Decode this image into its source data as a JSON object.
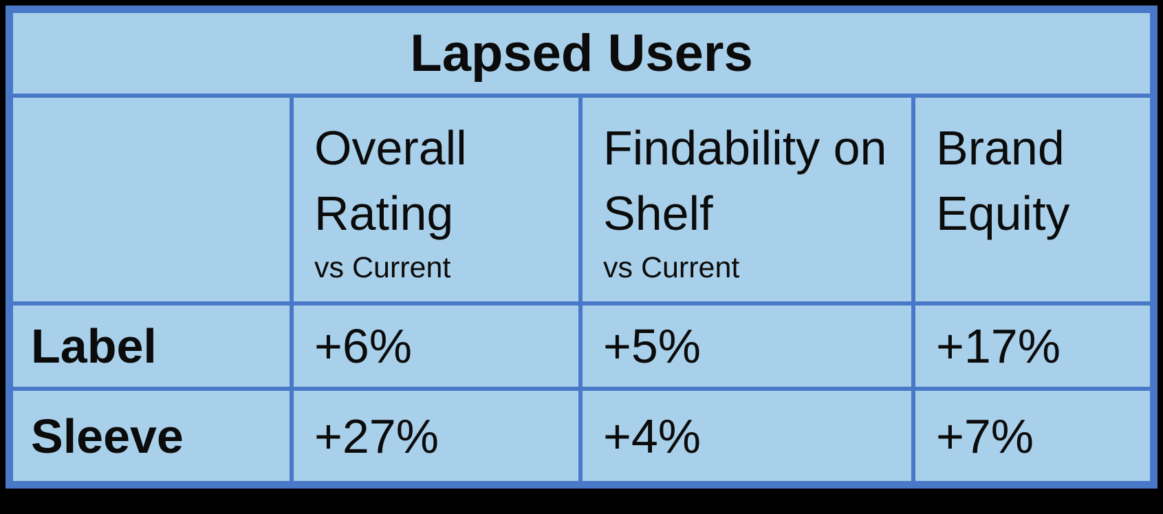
{
  "chart_data": {
    "type": "table",
    "title": "Lapsed Users",
    "columns": [
      {
        "label": "Overall Rating",
        "sublabel": "vs Current"
      },
      {
        "label": "Findability on Shelf",
        "sublabel": "vs Current"
      },
      {
        "label": "Brand Equity",
        "sublabel": ""
      }
    ],
    "rows": [
      {
        "label": "Label",
        "values": [
          "+6%",
          "+5%",
          "+17%"
        ]
      },
      {
        "label": "Sleeve",
        "values": [
          "+27%",
          "+4%",
          "+7%"
        ]
      }
    ]
  },
  "colors": {
    "page_bg": "#000000",
    "cell_bg": "#A9D0EA",
    "grid_line": "#4A78C8",
    "text": "#0B0B0B"
  }
}
